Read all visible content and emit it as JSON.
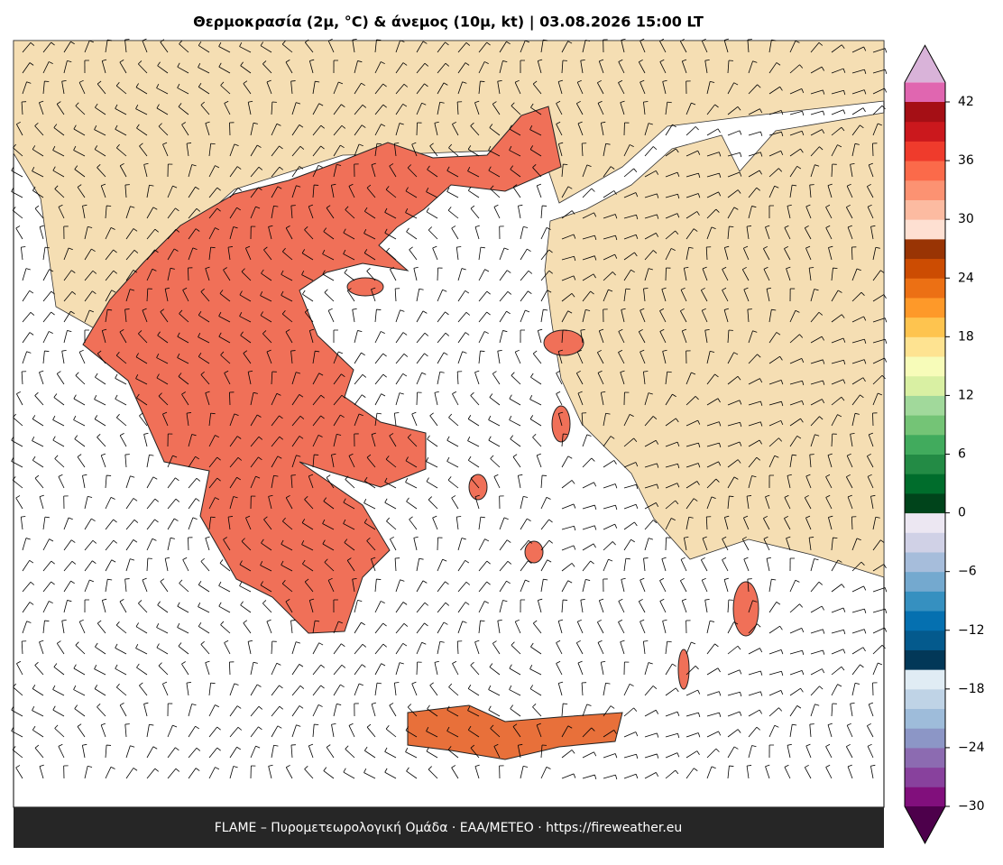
{
  "title": "Θερμοκρασία (2μ, °C) & άνεμος (10μ, kt)  |  03.08.2026 15:00 LT",
  "footer": "FLAME – Πυρομετεωρολογική Ομάδα · ΕΑΑ/METEO · https://fireweather.eu",
  "colorbar": {
    "lim": [
      -30,
      42
    ],
    "ticks": [
      {
        "value": -30,
        "label": "−30"
      },
      {
        "value": -24,
        "label": "−24"
      },
      {
        "value": -18,
        "label": "−18"
      },
      {
        "value": -12,
        "label": "−12"
      },
      {
        "value": -6,
        "label": "−6"
      },
      0,
      6,
      12,
      18,
      24,
      30,
      36,
      42
    ],
    "colors": [
      "#810f7c",
      "#88419d",
      "#8c6bb1",
      "#8c96c6",
      "#9ebcda",
      "#bfd3e6",
      "#e0ecf4",
      "#023858",
      "#045a8d",
      "#0570b0",
      "#3690c0",
      "#74a9cf",
      "#a6bddb",
      "#d0d1e6",
      "#ece7f2",
      "#00441b",
      "#006d2c",
      "#238b45",
      "#41ab5d",
      "#74c476",
      "#a1d99b",
      "#d9f0a3",
      "#f7fcb9",
      "#fee391",
      "#fec44f",
      "#fe9929",
      "#ec7014",
      "#cc4c02",
      "#993404",
      "#fee0d2",
      "#fcbba1",
      "#fc9272",
      "#fb6a4a",
      "#ef3b2c",
      "#cb181d",
      "#a50f15"
    ],
    "extend_low": "#4d004b",
    "extend_high": [
      "#e066b0",
      "#d9b3d9"
    ]
  }
}
